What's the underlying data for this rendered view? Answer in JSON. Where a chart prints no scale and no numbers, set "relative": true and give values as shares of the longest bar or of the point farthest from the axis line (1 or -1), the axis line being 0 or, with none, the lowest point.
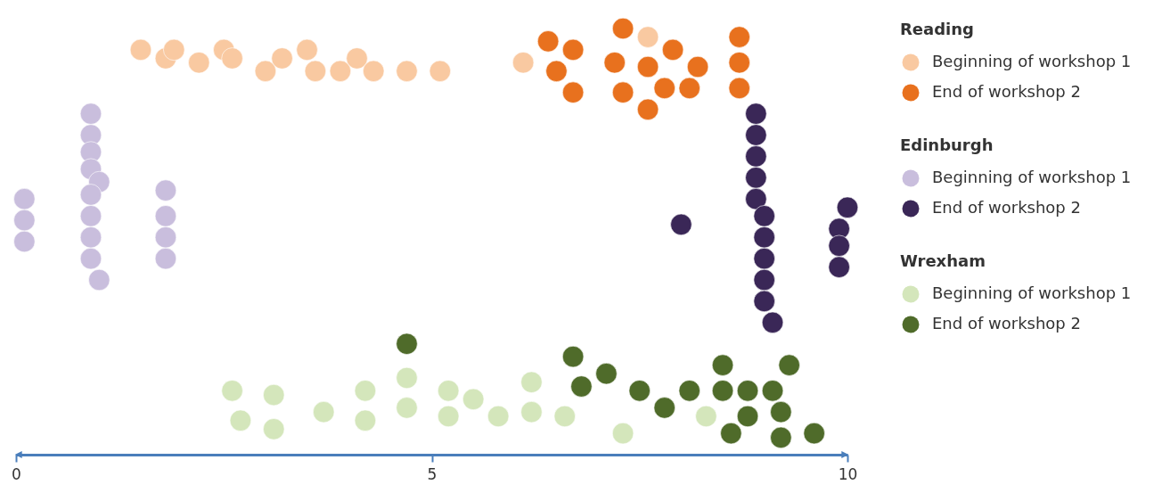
{
  "chart_data": {
    "type": "scatter",
    "relative": true,
    "xlim": [
      0,
      10
    ],
    "xticks": [
      0,
      5,
      10
    ],
    "tick_labels": "x",
    "grid": false,
    "marker": "circle",
    "legend": "right",
    "annotations": [
      "Reading",
      "Edinburgh",
      "Wrexham"
    ],
    "series": [
      {
        "name": "Beginning of workshop 1",
        "color": "#f9c9a1",
        "x": [
          1.5,
          1.8,
          1.9,
          2.2,
          2.5,
          2.6,
          3.0,
          3.2,
          3.5,
          3.6,
          3.9,
          4.1,
          4.3,
          4.7,
          5.1,
          6.1,
          7.6
        ],
        "values": [
          0.95,
          0.93,
          0.95,
          0.92,
          0.95,
          0.93,
          0.9,
          0.93,
          0.95,
          0.9,
          0.9,
          0.93,
          0.9,
          0.9,
          0.9,
          0.92,
          0.98
        ]
      },
      {
        "name": "End of workshop 2",
        "color": "#e8711e",
        "x": [
          6.4,
          6.7,
          6.5,
          6.7,
          7.3,
          7.2,
          7.3,
          7.6,
          7.9,
          7.8,
          8.2,
          8.1,
          7.6,
          8.7,
          8.7,
          8.7
        ],
        "values": [
          0.97,
          0.95,
          0.9,
          0.85,
          1.0,
          0.92,
          0.85,
          0.91,
          0.95,
          0.86,
          0.91,
          0.86,
          0.81,
          0.98,
          0.92,
          0.86
        ]
      },
      {
        "name": "Beginning of workshop 1",
        "color": "#c9bedd",
        "x": [
          0.1,
          0.1,
          0.1,
          0.9,
          0.9,
          0.9,
          0.9,
          1.0,
          0.9,
          0.9,
          0.9,
          0.9,
          1.0,
          1.8,
          1.8,
          1.8,
          1.8
        ],
        "values": [
          0.6,
          0.55,
          0.5,
          0.8,
          0.75,
          0.71,
          0.67,
          0.64,
          0.61,
          0.56,
          0.51,
          0.46,
          0.41,
          0.62,
          0.56,
          0.51,
          0.46
        ]
      },
      {
        "name": "End of workshop 2",
        "color": "#3a2757",
        "x": [
          8.9,
          8.9,
          8.9,
          8.9,
          8.9,
          9.0,
          9.0,
          9.0,
          9.0,
          9.0,
          9.1,
          8.0,
          10.0,
          9.9,
          9.9,
          9.9
        ],
        "values": [
          0.8,
          0.75,
          0.7,
          0.65,
          0.6,
          0.56,
          0.51,
          0.46,
          0.41,
          0.36,
          0.31,
          0.54,
          0.58,
          0.53,
          0.49,
          0.44
        ]
      },
      {
        "name": "Beginning of workshop 1",
        "color": "#d4e6bb",
        "x": [
          2.6,
          2.7,
          3.1,
          3.1,
          3.7,
          4.2,
          4.2,
          4.7,
          4.7,
          5.2,
          5.2,
          5.5,
          5.8,
          6.2,
          6.2,
          6.6,
          7.3,
          8.3
        ],
        "values": [
          0.15,
          0.08,
          0.14,
          0.06,
          0.1,
          0.15,
          0.08,
          0.18,
          0.11,
          0.15,
          0.09,
          0.13,
          0.09,
          0.17,
          0.1,
          0.09,
          0.05,
          0.09
        ]
      },
      {
        "name": "End of workshop 2",
        "color": "#4f6b2a",
        "x": [
          4.7,
          6.7,
          6.8,
          7.1,
          7.5,
          7.8,
          8.1,
          8.5,
          8.5,
          8.8,
          9.1,
          9.3,
          8.8,
          9.2,
          8.6,
          9.2,
          9.6
        ],
        "values": [
          0.26,
          0.23,
          0.16,
          0.19,
          0.15,
          0.11,
          0.15,
          0.21,
          0.15,
          0.15,
          0.15,
          0.21,
          0.09,
          0.1,
          0.05,
          0.04,
          0.05
        ]
      }
    ]
  }
}
